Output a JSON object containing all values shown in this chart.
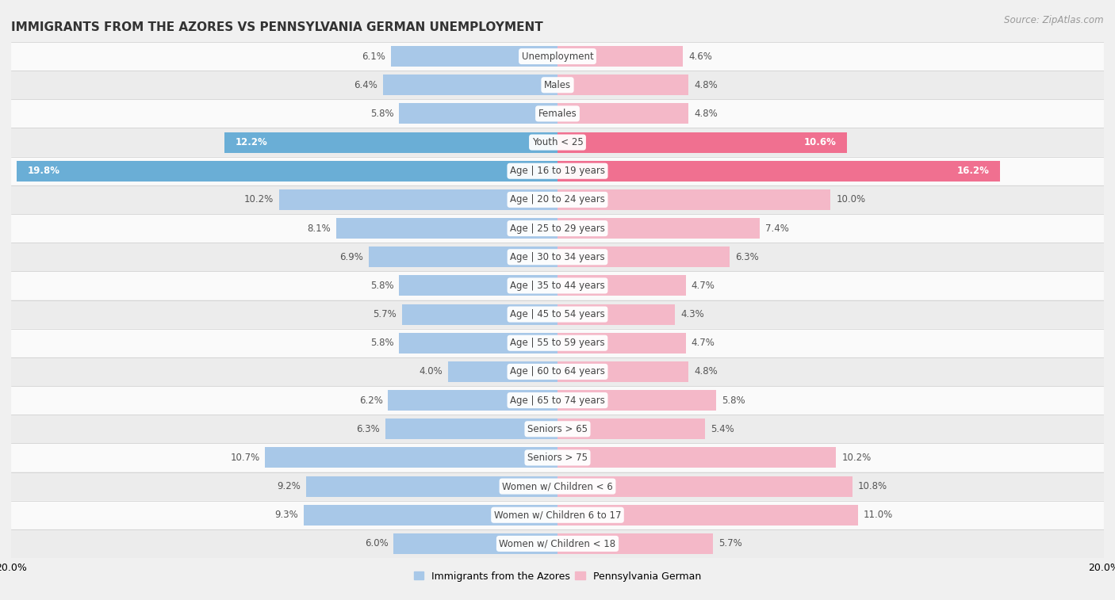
{
  "title": "IMMIGRANTS FROM THE AZORES VS PENNSYLVANIA GERMAN UNEMPLOYMENT",
  "source": "Source: ZipAtlas.com",
  "categories": [
    "Unemployment",
    "Males",
    "Females",
    "Youth < 25",
    "Age | 16 to 19 years",
    "Age | 20 to 24 years",
    "Age | 25 to 29 years",
    "Age | 30 to 34 years",
    "Age | 35 to 44 years",
    "Age | 45 to 54 years",
    "Age | 55 to 59 years",
    "Age | 60 to 64 years",
    "Age | 65 to 74 years",
    "Seniors > 65",
    "Seniors > 75",
    "Women w/ Children < 6",
    "Women w/ Children 6 to 17",
    "Women w/ Children < 18"
  ],
  "left_values": [
    6.1,
    6.4,
    5.8,
    12.2,
    19.8,
    10.2,
    8.1,
    6.9,
    5.8,
    5.7,
    5.8,
    4.0,
    6.2,
    6.3,
    10.7,
    9.2,
    9.3,
    6.0
  ],
  "right_values": [
    4.6,
    4.8,
    4.8,
    10.6,
    16.2,
    10.0,
    7.4,
    6.3,
    4.7,
    4.3,
    4.7,
    4.8,
    5.8,
    5.4,
    10.2,
    10.8,
    11.0,
    5.7
  ],
  "left_color_normal": "#a8c8e8",
  "left_color_highlight": "#6aaed6",
  "right_color_normal": "#f4b8c8",
  "right_color_highlight": "#f07090",
  "highlight_rows": [
    3,
    4
  ],
  "bg_color": "#f0f0f0",
  "row_colors": [
    "#fafafa",
    "#ececec"
  ],
  "axis_limit": 20.0,
  "left_label": "Immigrants from the Azores",
  "right_label": "Pennsylvania German",
  "title_fontsize": 11,
  "source_fontsize": 8.5,
  "bar_height": 0.72,
  "value_fontsize": 8.5,
  "label_fontsize": 8.5
}
